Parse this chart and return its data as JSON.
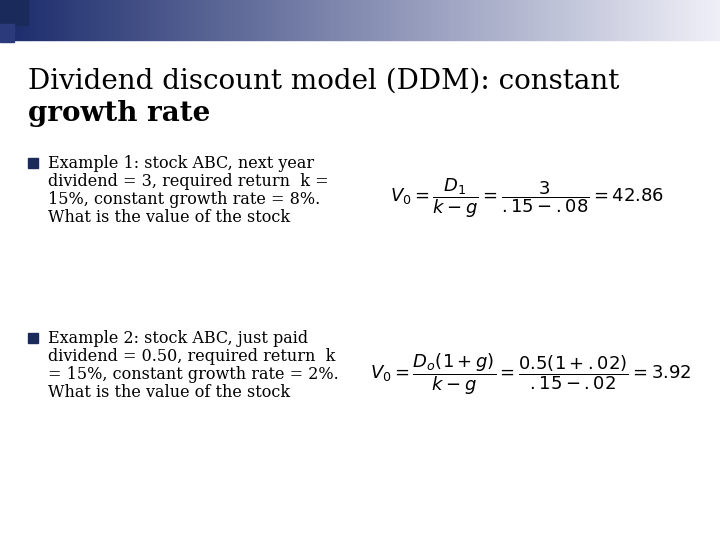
{
  "title_line1": "Dividend discount model (DDM): constant",
  "title_line2": "growth rate",
  "bg_color": "#ffffff",
  "bullet_color": "#1a2a5a",
  "title_color": "#000000",
  "text_color": "#000000",
  "bullet1_lines": [
    "Example 1: stock ABC, next year",
    "dividend = 3, required return  k =",
    "15%, constant growth rate = 8%.",
    "What is the value of the stock"
  ],
  "bullet2_lines": [
    "Example 2: stock ABC, just paid",
    "dividend = 0.50, required return  k",
    "= 15%, constant growth rate = 2%.",
    "What is the value of the stock"
  ],
  "formula1": "$V_0 = \\dfrac{D_1}{k-g} = \\dfrac{3}{.15-.08} = 42.86$",
  "formula2": "$V_0 = \\dfrac{D_o(1+g)}{k-g} = \\dfrac{0.5(1+.02)}{.15-.02} = 3.92$",
  "title_fontsize": 20,
  "body_fontsize": 11.5,
  "formula_fontsize": 13,
  "gradient_dark": [
    26,
    42,
    107
  ],
  "gradient_light": [
    240,
    240,
    248
  ],
  "corner_sq1_color": "#1a2a5a",
  "corner_sq2_color": "#2a3a7a"
}
